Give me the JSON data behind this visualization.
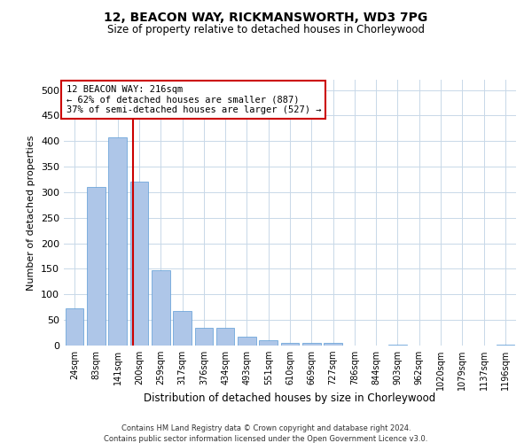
{
  "title": "12, BEACON WAY, RICKMANSWORTH, WD3 7PG",
  "subtitle": "Size of property relative to detached houses in Chorleywood",
  "xlabel": "Distribution of detached houses by size in Chorleywood",
  "ylabel": "Number of detached properties",
  "footer1": "Contains HM Land Registry data © Crown copyright and database right 2024.",
  "footer2": "Contains public sector information licensed under the Open Government Licence v3.0.",
  "annotation_line1": "12 BEACON WAY: 216sqm",
  "annotation_line2": "← 62% of detached houses are smaller (887)",
  "annotation_line3": "37% of semi-detached houses are larger (527) →",
  "bar_color": "#aec6e8",
  "bar_edge_color": "#5b9bd5",
  "vline_color": "#cc0000",
  "annotation_box_color": "#ffffff",
  "annotation_box_edge_color": "#cc0000",
  "background_color": "#ffffff",
  "grid_color": "#c8d8e8",
  "categories": [
    "24sqm",
    "83sqm",
    "141sqm",
    "200sqm",
    "259sqm",
    "317sqm",
    "376sqm",
    "434sqm",
    "493sqm",
    "551sqm",
    "610sqm",
    "669sqm",
    "727sqm",
    "786sqm",
    "844sqm",
    "903sqm",
    "962sqm",
    "1020sqm",
    "1079sqm",
    "1137sqm",
    "1196sqm"
  ],
  "values": [
    73,
    310,
    407,
    320,
    147,
    68,
    35,
    35,
    18,
    10,
    5,
    5,
    6,
    0,
    0,
    2,
    0,
    0,
    0,
    0,
    2
  ],
  "vline_x": 2.72,
  "ylim": [
    0,
    520
  ],
  "yticks": [
    0,
    50,
    100,
    150,
    200,
    250,
    300,
    350,
    400,
    450,
    500
  ],
  "figsize": [
    6.0,
    5.0
  ],
  "dpi": 100
}
